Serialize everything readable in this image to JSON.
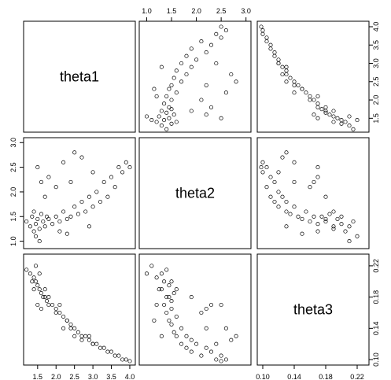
{
  "chart_data": {
    "type": "scatter",
    "variables": [
      "theta1",
      "theta2",
      "theta3"
    ],
    "panel_labels": [
      "theta1",
      "theta2",
      "theta3"
    ],
    "ranges": {
      "theta1": [
        1.12,
        4.15
      ],
      "theta2": [
        0.85,
        3.1
      ],
      "theta3": [
        0.093,
        0.235
      ]
    },
    "ticks": {
      "theta1": [
        "1.5",
        "2.0",
        "2.5",
        "3.0",
        "3.5",
        "4.0"
      ],
      "theta2": [
        "1.0",
        "1.5",
        "2.0",
        "2.5",
        "3.0"
      ],
      "theta3": [
        "0.10",
        "0.14",
        "0.18",
        "0.22"
      ]
    },
    "tick_values": {
      "theta1": [
        1.5,
        2.0,
        2.5,
        3.0,
        3.5,
        4.0
      ],
      "theta2": [
        1.0,
        1.5,
        2.0,
        2.5,
        3.0
      ],
      "theta3": [
        0.1,
        0.14,
        0.18,
        0.22
      ]
    },
    "axis_placement": {
      "bottom": [
        "theta1",
        "theta3"
      ],
      "top": [
        "theta2"
      ],
      "left": [
        "theta2"
      ],
      "right": [
        "theta1",
        "theta3"
      ]
    },
    "grid": false,
    "legend": "none",
    "point_style": "open circle",
    "series": [
      {
        "x": [
          1.2,
          1.3,
          1.35,
          1.4,
          1.4,
          1.45,
          1.5,
          1.55,
          1.6,
          1.65,
          1.7,
          1.75,
          1.8,
          1.9,
          2.0,
          2.1,
          2.2,
          2.3,
          2.4,
          2.5,
          2.6,
          2.7,
          2.8,
          2.9,
          3.0,
          3.1,
          3.2,
          3.3,
          3.4,
          3.5,
          3.6,
          3.7,
          3.8,
          3.9,
          4.0,
          1.5,
          1.6,
          1.7,
          2.0,
          2.2,
          2.5,
          1.8,
          2.4,
          2.7,
          3.0,
          1.45,
          1.55,
          2.1,
          2.3,
          2.9
        ],
        "theta2": [
          1.4,
          1.3,
          1.5,
          1.2,
          1.6,
          1.35,
          1.45,
          1.25,
          1.55,
          1.4,
          1.3,
          1.5,
          1.45,
          1.35,
          1.5,
          1.4,
          1.6,
          1.45,
          1.5,
          1.7,
          1.55,
          1.8,
          1.6,
          1.9,
          1.7,
          2.0,
          1.8,
          2.2,
          1.9,
          2.3,
          2.1,
          2.5,
          2.4,
          2.6,
          2.5,
          2.5,
          2.2,
          1.9,
          2.1,
          2.6,
          2.8,
          2.3,
          2.2,
          2.7,
          2.4,
          1.1,
          1.0,
          1.2,
          1.15,
          1.3
        ],
        "theta3": [
          0.215,
          0.21,
          0.2,
          0.205,
          0.19,
          0.2,
          0.195,
          0.19,
          0.185,
          0.18,
          0.19,
          0.175,
          0.18,
          0.17,
          0.165,
          0.16,
          0.155,
          0.15,
          0.145,
          0.14,
          0.135,
          0.13,
          0.13,
          0.125,
          0.12,
          0.12,
          0.115,
          0.115,
          0.11,
          0.11,
          0.105,
          0.105,
          0.1,
          0.1,
          0.098,
          0.17,
          0.165,
          0.18,
          0.16,
          0.14,
          0.13,
          0.17,
          0.14,
          0.125,
          0.12,
          0.22,
          0.21,
          0.17,
          0.15,
          0.13
        ]
      }
    ]
  }
}
